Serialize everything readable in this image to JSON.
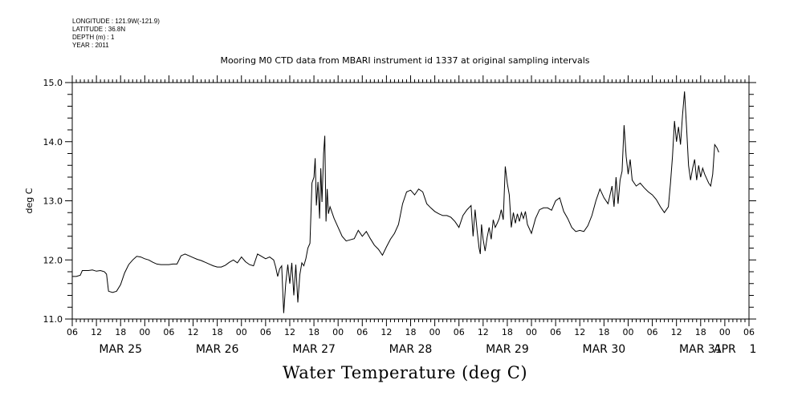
{
  "meta_block": {
    "longitude": "LONGITUDE : 121.9W(-121.9)",
    "latitude": "LATITUDE : 36.8N",
    "depth": "DEPTH (m) : 1",
    "year": "YEAR : 2011"
  },
  "chart_data": {
    "type": "line",
    "title": "Mooring M0 CTD data from MBARI instrument id 1337 at original sampling intervals",
    "subtitle": "Water Temperature (deg C)",
    "ylabel": "deg C",
    "ylim": [
      11.0,
      15.0
    ],
    "xlim_hours": [
      0,
      168
    ],
    "y_ticks": [
      11.0,
      12.0,
      13.0,
      14.0,
      15.0
    ],
    "y_minor_step": 0.2,
    "x_hour_ticks": [
      "06",
      "12",
      "18",
      "00",
      "06",
      "12",
      "18",
      "00",
      "06",
      "12",
      "18",
      "00",
      "06",
      "12",
      "18",
      "00",
      "06",
      "12",
      "18",
      "00",
      "06",
      "12",
      "18",
      "00",
      "06",
      "12",
      "18",
      "00",
      "06"
    ],
    "x_day_labels": [
      {
        "label": "MAR 25",
        "hour": 12
      },
      {
        "label": "MAR 26",
        "hour": 36
      },
      {
        "label": "MAR 27",
        "hour": 60
      },
      {
        "label": "MAR 28",
        "hour": 84
      },
      {
        "label": "MAR 29",
        "hour": 108
      },
      {
        "label": "MAR 30",
        "hour": 132
      },
      {
        "label": "MAR 31",
        "hour": 156
      },
      {
        "label": "APR",
        "hour": 162
      },
      {
        "label": "1",
        "hour": 169
      }
    ],
    "series": [
      {
        "points": [
          [
            0,
            11.72
          ],
          [
            1,
            11.72
          ],
          [
            2,
            11.74
          ],
          [
            2.5,
            11.82
          ],
          [
            4,
            11.82
          ],
          [
            5,
            11.83
          ],
          [
            6,
            11.81
          ],
          [
            7,
            11.82
          ],
          [
            8,
            11.8
          ],
          [
            8.5,
            11.76
          ],
          [
            9,
            11.47
          ],
          [
            10,
            11.45
          ],
          [
            11,
            11.47
          ],
          [
            12,
            11.58
          ],
          [
            13,
            11.78
          ],
          [
            14,
            11.92
          ],
          [
            15,
            12.0
          ],
          [
            16,
            12.06
          ],
          [
            17,
            12.05
          ],
          [
            18,
            12.02
          ],
          [
            19,
            12.0
          ],
          [
            20,
            11.96
          ],
          [
            21,
            11.93
          ],
          [
            22,
            11.92
          ],
          [
            23,
            11.92
          ],
          [
            24,
            11.92
          ],
          [
            25,
            11.93
          ],
          [
            26,
            11.93
          ],
          [
            27,
            12.07
          ],
          [
            28,
            12.1
          ],
          [
            29,
            12.07
          ],
          [
            30,
            12.04
          ],
          [
            31,
            12.01
          ],
          [
            32,
            11.99
          ],
          [
            33,
            11.96
          ],
          [
            34,
            11.93
          ],
          [
            35,
            11.9
          ],
          [
            36,
            11.88
          ],
          [
            37,
            11.88
          ],
          [
            38,
            11.91
          ],
          [
            39,
            11.96
          ],
          [
            40,
            12.0
          ],
          [
            41,
            11.95
          ],
          [
            42,
            12.05
          ],
          [
            43,
            11.97
          ],
          [
            44,
            11.92
          ],
          [
            45,
            11.9
          ],
          [
            46,
            12.1
          ],
          [
            47,
            12.06
          ],
          [
            48,
            12.02
          ],
          [
            49,
            12.05
          ],
          [
            50,
            12.0
          ],
          [
            50.5,
            11.88
          ],
          [
            51,
            11.72
          ],
          [
            51.5,
            11.85
          ],
          [
            52,
            11.9
          ],
          [
            52.5,
            11.1
          ],
          [
            53,
            11.6
          ],
          [
            53.5,
            11.92
          ],
          [
            54,
            11.6
          ],
          [
            54.5,
            11.95
          ],
          [
            55,
            11.4
          ],
          [
            55.5,
            11.92
          ],
          [
            56,
            11.28
          ],
          [
            56.5,
            11.75
          ],
          [
            57,
            11.95
          ],
          [
            57.5,
            11.9
          ],
          [
            58,
            12.02
          ],
          [
            58.5,
            12.2
          ],
          [
            59,
            12.28
          ],
          [
            59.5,
            13.3
          ],
          [
            60,
            13.4
          ],
          [
            60.3,
            13.72
          ],
          [
            60.6,
            12.92
          ],
          [
            61,
            13.32
          ],
          [
            61.4,
            12.7
          ],
          [
            61.7,
            13.55
          ],
          [
            62,
            12.98
          ],
          [
            62.4,
            13.8
          ],
          [
            62.7,
            14.1
          ],
          [
            63,
            12.65
          ],
          [
            63.3,
            13.2
          ],
          [
            63.6,
            12.78
          ],
          [
            64,
            12.9
          ],
          [
            65,
            12.7
          ],
          [
            66,
            12.55
          ],
          [
            67,
            12.4
          ],
          [
            68,
            12.32
          ],
          [
            69,
            12.34
          ],
          [
            70,
            12.36
          ],
          [
            71,
            12.5
          ],
          [
            72,
            12.4
          ],
          [
            73,
            12.48
          ],
          [
            74,
            12.36
          ],
          [
            75,
            12.25
          ],
          [
            76,
            12.18
          ],
          [
            77,
            12.08
          ],
          [
            78,
            12.22
          ],
          [
            79,
            12.35
          ],
          [
            80,
            12.45
          ],
          [
            81,
            12.6
          ],
          [
            82,
            12.95
          ],
          [
            83,
            13.15
          ],
          [
            84,
            13.18
          ],
          [
            85,
            13.1
          ],
          [
            86,
            13.2
          ],
          [
            87,
            13.15
          ],
          [
            88,
            12.95
          ],
          [
            89,
            12.88
          ],
          [
            90,
            12.82
          ],
          [
            91,
            12.78
          ],
          [
            92,
            12.75
          ],
          [
            93,
            12.75
          ],
          [
            94,
            12.72
          ],
          [
            95,
            12.65
          ],
          [
            96,
            12.55
          ],
          [
            97,
            12.75
          ],
          [
            98,
            12.85
          ],
          [
            99,
            12.92
          ],
          [
            99.5,
            12.4
          ],
          [
            100,
            12.85
          ],
          [
            100.5,
            12.5
          ],
          [
            101,
            12.2
          ],
          [
            101.3,
            12.1
          ],
          [
            101.6,
            12.6
          ],
          [
            102,
            12.35
          ],
          [
            102.5,
            12.15
          ],
          [
            103,
            12.38
          ],
          [
            103.5,
            12.55
          ],
          [
            104,
            12.35
          ],
          [
            104.5,
            12.68
          ],
          [
            105,
            12.55
          ],
          [
            105.5,
            12.62
          ],
          [
            106,
            12.7
          ],
          [
            106.5,
            12.85
          ],
          [
            107,
            12.68
          ],
          [
            107.5,
            13.58
          ],
          [
            108,
            13.3
          ],
          [
            108.5,
            13.1
          ],
          [
            109,
            12.55
          ],
          [
            109.5,
            12.8
          ],
          [
            110,
            12.62
          ],
          [
            110.5,
            12.78
          ],
          [
            111,
            12.65
          ],
          [
            111.5,
            12.8
          ],
          [
            112,
            12.7
          ],
          [
            112.5,
            12.82
          ],
          [
            113,
            12.6
          ],
          [
            114,
            12.45
          ],
          [
            115,
            12.7
          ],
          [
            116,
            12.85
          ],
          [
            117,
            12.88
          ],
          [
            118,
            12.88
          ],
          [
            119,
            12.84
          ],
          [
            120,
            13.0
          ],
          [
            121,
            13.05
          ],
          [
            122,
            12.82
          ],
          [
            123,
            12.7
          ],
          [
            124,
            12.55
          ],
          [
            125,
            12.48
          ],
          [
            126,
            12.5
          ],
          [
            127,
            12.48
          ],
          [
            128,
            12.58
          ],
          [
            129,
            12.75
          ],
          [
            130,
            13.0
          ],
          [
            131,
            13.2
          ],
          [
            132,
            13.05
          ],
          [
            133,
            12.95
          ],
          [
            134,
            13.25
          ],
          [
            134.5,
            12.9
          ],
          [
            135,
            13.4
          ],
          [
            135.5,
            12.95
          ],
          [
            136,
            13.35
          ],
          [
            136.5,
            13.5
          ],
          [
            137,
            14.28
          ],
          [
            137.5,
            13.75
          ],
          [
            138,
            13.45
          ],
          [
            138.5,
            13.7
          ],
          [
            139,
            13.35
          ],
          [
            140,
            13.25
          ],
          [
            141,
            13.3
          ],
          [
            142,
            13.22
          ],
          [
            143,
            13.15
          ],
          [
            144,
            13.1
          ],
          [
            145,
            13.02
          ],
          [
            146,
            12.9
          ],
          [
            147,
            12.8
          ],
          [
            148,
            12.9
          ],
          [
            148.5,
            13.3
          ],
          [
            149,
            13.75
          ],
          [
            149.5,
            14.35
          ],
          [
            150,
            14.0
          ],
          [
            150.5,
            14.25
          ],
          [
            151,
            13.95
          ],
          [
            151.5,
            14.45
          ],
          [
            152,
            14.85
          ],
          [
            152.5,
            14.25
          ],
          [
            153,
            13.6
          ],
          [
            153.5,
            13.35
          ],
          [
            154,
            13.55
          ],
          [
            154.5,
            13.7
          ],
          [
            155,
            13.35
          ],
          [
            155.5,
            13.6
          ],
          [
            156,
            13.4
          ],
          [
            156.5,
            13.55
          ],
          [
            157,
            13.45
          ],
          [
            158,
            13.3
          ],
          [
            158.5,
            13.25
          ],
          [
            159,
            13.45
          ],
          [
            159.5,
            13.95
          ],
          [
            160,
            13.9
          ],
          [
            160.5,
            13.82
          ]
        ]
      }
    ]
  }
}
